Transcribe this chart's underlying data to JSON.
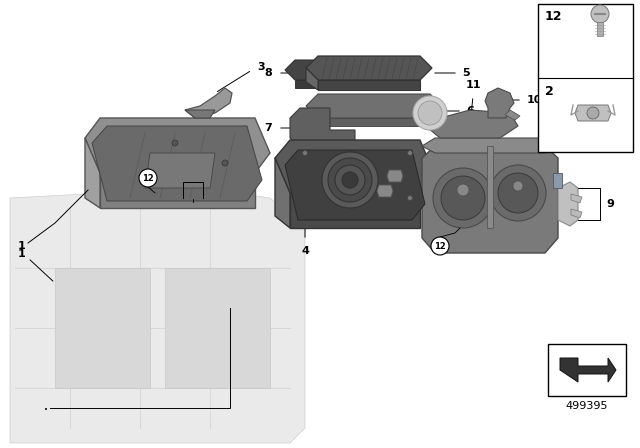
{
  "bg_color": "#ffffff",
  "diagram_id": "499395",
  "figure_size": [
    6.4,
    4.48
  ],
  "dpi": 100,
  "grey_light": "#c8c8c8",
  "grey_mid": "#aaaaaa",
  "grey_dark": "#777777",
  "grey_darker": "#555555",
  "grey_darkest": "#333333",
  "grey_body": "#888888",
  "white": "#ffffff",
  "black": "#000000"
}
